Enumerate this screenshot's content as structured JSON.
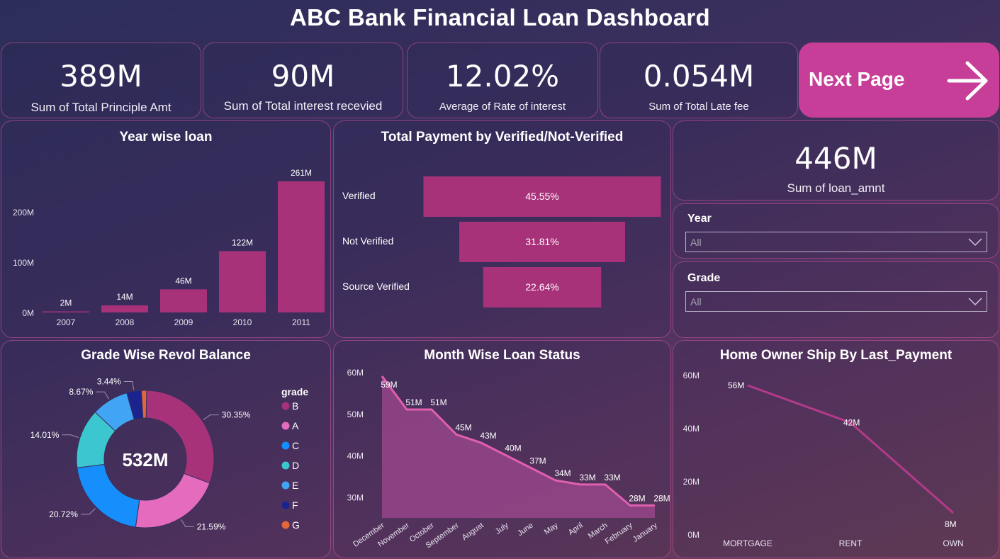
{
  "title": "ABC Bank Financial Loan Dashboard",
  "kpis": [
    {
      "value": "389M",
      "label": "Sum of Total Principle Amt"
    },
    {
      "value": "90M",
      "label": "Sum of Total interest recevied"
    },
    {
      "value": "12.02%",
      "label": "Average of Rate of interest"
    },
    {
      "value": "0.054M",
      "label": "Sum of Total Late fee"
    }
  ],
  "next_page": {
    "label": "Next Page",
    "icon": "arrow-right-icon"
  },
  "loan_amnt": {
    "value": "446M",
    "label": "Sum of loan_amnt"
  },
  "slicers": {
    "year": {
      "label": "Year",
      "value": "All"
    },
    "grade": {
      "label": "Grade",
      "value": "All"
    }
  },
  "colors": {
    "accent": "#a8327a",
    "pink": "#d6509e",
    "background": "#3d2f5e",
    "button": "#c63e97"
  },
  "chart_data": [
    {
      "id": "year_wise_loan",
      "type": "bar",
      "title": "Year wise loan",
      "categories": [
        "2007",
        "2008",
        "2009",
        "2010",
        "2011"
      ],
      "values": [
        2,
        14,
        46,
        122,
        261
      ],
      "data_labels": [
        "2M",
        "14M",
        "46M",
        "122M",
        "261M"
      ],
      "y_ticks": [
        "0M",
        "100M",
        "200M"
      ],
      "ylim": [
        0,
        275
      ],
      "color": "#a8327a"
    },
    {
      "id": "payment_verified",
      "type": "bar",
      "title": "Total Payment by Verified/Not-Verified",
      "categories": [
        "Verified",
        "Not Verified",
        "Source Verified"
      ],
      "values": [
        45.55,
        31.81,
        22.64
      ],
      "data_labels": [
        "45.55%",
        "31.81%",
        "22.64%"
      ],
      "color": "#a8327a"
    },
    {
      "id": "grade_revol",
      "type": "pie",
      "title": "Grade Wise Revol Balance",
      "center_label": "532M",
      "legend_title": "grade",
      "legend_position": "right",
      "slices": [
        {
          "name": "B",
          "value": 30.35,
          "label": "30.35%",
          "color": "#a8327a"
        },
        {
          "name": "A",
          "value": 21.59,
          "label": "21.59%",
          "color": "#e46bbd"
        },
        {
          "name": "C",
          "value": 20.72,
          "label": "20.72%",
          "color": "#168ffc"
        },
        {
          "name": "D",
          "value": 14.01,
          "label": "14.01%",
          "color": "#3cc6cf"
        },
        {
          "name": "E",
          "value": 8.67,
          "label": "8.67%",
          "color": "#41a4f5"
        },
        {
          "name": "F",
          "value": 3.44,
          "label": "3.44%",
          "color": "#1b238f"
        },
        {
          "name": "G",
          "value": 1.22,
          "label": "",
          "color": "#e2663b"
        }
      ]
    },
    {
      "id": "month_wise_status",
      "type": "area",
      "title": "Month Wise Loan Status",
      "categories": [
        "December",
        "November",
        "October",
        "September",
        "August",
        "July",
        "June",
        "May",
        "April",
        "March",
        "February",
        "January"
      ],
      "values": [
        59,
        51,
        51,
        45,
        43,
        40,
        37,
        34,
        33,
        33,
        28,
        28
      ],
      "data_labels": [
        "59M",
        "51M",
        "51M",
        "45M",
        "43M",
        "40M",
        "37M",
        "34M",
        "33M",
        "33M",
        "28M",
        "28M"
      ],
      "y_ticks": [
        "30M",
        "40M",
        "50M",
        "60M"
      ],
      "ylim": [
        25,
        60
      ],
      "color": "#e05fae"
    },
    {
      "id": "home_ownership",
      "type": "line",
      "title": "Home Owner Ship By Last_Payment",
      "categories": [
        "MORTGAGE",
        "RENT",
        "OWN"
      ],
      "values": [
        56,
        42,
        8
      ],
      "data_labels": [
        "56M",
        "42M",
        "8M"
      ],
      "y_ticks": [
        "0M",
        "20M",
        "40M",
        "60M"
      ],
      "ylim": [
        0,
        60
      ],
      "color": "#b23a8a"
    }
  ]
}
